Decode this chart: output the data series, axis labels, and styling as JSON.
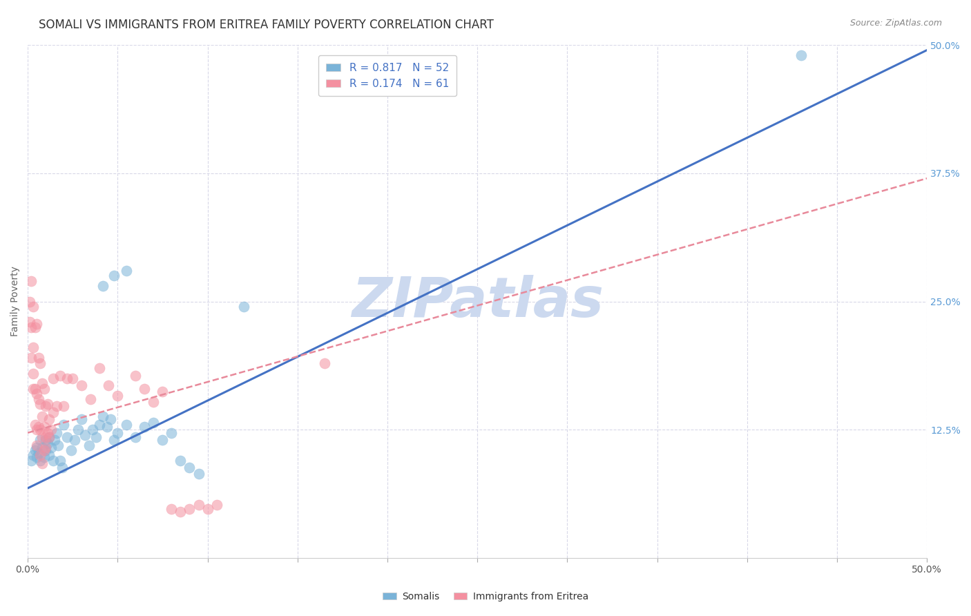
{
  "title": "SOMALI VS IMMIGRANTS FROM ERITREA FAMILY POVERTY CORRELATION CHART",
  "source": "Source: ZipAtlas.com",
  "ylabel": "Family Poverty",
  "xlim": [
    0,
    0.5
  ],
  "ylim": [
    0,
    0.5
  ],
  "xtick_vals": [
    0.0,
    0.05,
    0.1,
    0.15,
    0.2,
    0.25,
    0.3,
    0.35,
    0.4,
    0.45,
    0.5
  ],
  "xtick_label_vals": [
    0.0,
    0.5
  ],
  "xtick_label_texts": [
    "0.0%",
    "50.0%"
  ],
  "ytick_vals_right": [
    0.125,
    0.25,
    0.375,
    0.5
  ],
  "ytick_labels_right": [
    "12.5%",
    "25.0%",
    "37.5%",
    "50.0%"
  ],
  "somali_color": "#7ab3d8",
  "eritrea_color": "#f490a0",
  "somali_line_color": "#4472c4",
  "eritrea_line_color": "#e8899a",
  "watermark": "ZIPatlas",
  "watermark_color": "#ccd9ef",
  "background_color": "#ffffff",
  "grid_color": "#d8d8e8",
  "somali_scatter": [
    [
      0.002,
      0.095
    ],
    [
      0.003,
      0.1
    ],
    [
      0.004,
      0.105
    ],
    [
      0.005,
      0.098
    ],
    [
      0.005,
      0.108
    ],
    [
      0.006,
      0.102
    ],
    [
      0.007,
      0.095
    ],
    [
      0.007,
      0.115
    ],
    [
      0.008,
      0.108
    ],
    [
      0.009,
      0.098
    ],
    [
      0.01,
      0.105
    ],
    [
      0.01,
      0.115
    ],
    [
      0.011,
      0.112
    ],
    [
      0.012,
      0.1
    ],
    [
      0.012,
      0.118
    ],
    [
      0.013,
      0.108
    ],
    [
      0.014,
      0.095
    ],
    [
      0.015,
      0.115
    ],
    [
      0.016,
      0.122
    ],
    [
      0.017,
      0.11
    ],
    [
      0.018,
      0.095
    ],
    [
      0.019,
      0.088
    ],
    [
      0.02,
      0.13
    ],
    [
      0.022,
      0.118
    ],
    [
      0.024,
      0.105
    ],
    [
      0.026,
      0.115
    ],
    [
      0.028,
      0.125
    ],
    [
      0.03,
      0.135
    ],
    [
      0.032,
      0.12
    ],
    [
      0.034,
      0.11
    ],
    [
      0.036,
      0.125
    ],
    [
      0.038,
      0.118
    ],
    [
      0.04,
      0.13
    ],
    [
      0.042,
      0.138
    ],
    [
      0.044,
      0.128
    ],
    [
      0.046,
      0.135
    ],
    [
      0.048,
      0.115
    ],
    [
      0.05,
      0.122
    ],
    [
      0.055,
      0.13
    ],
    [
      0.06,
      0.118
    ],
    [
      0.065,
      0.128
    ],
    [
      0.07,
      0.132
    ],
    [
      0.075,
      0.115
    ],
    [
      0.08,
      0.122
    ],
    [
      0.085,
      0.095
    ],
    [
      0.09,
      0.088
    ],
    [
      0.095,
      0.082
    ],
    [
      0.042,
      0.265
    ],
    [
      0.048,
      0.275
    ],
    [
      0.055,
      0.28
    ],
    [
      0.12,
      0.245
    ],
    [
      0.43,
      0.49
    ]
  ],
  "eritrea_scatter": [
    [
      0.001,
      0.25
    ],
    [
      0.001,
      0.23
    ],
    [
      0.002,
      0.27
    ],
    [
      0.002,
      0.225
    ],
    [
      0.002,
      0.195
    ],
    [
      0.003,
      0.245
    ],
    [
      0.003,
      0.205
    ],
    [
      0.003,
      0.18
    ],
    [
      0.003,
      0.165
    ],
    [
      0.004,
      0.225
    ],
    [
      0.004,
      0.165
    ],
    [
      0.004,
      0.13
    ],
    [
      0.005,
      0.228
    ],
    [
      0.005,
      0.16
    ],
    [
      0.005,
      0.125
    ],
    [
      0.005,
      0.11
    ],
    [
      0.006,
      0.195
    ],
    [
      0.006,
      0.155
    ],
    [
      0.006,
      0.128
    ],
    [
      0.007,
      0.19
    ],
    [
      0.007,
      0.15
    ],
    [
      0.007,
      0.125
    ],
    [
      0.007,
      0.1
    ],
    [
      0.008,
      0.17
    ],
    [
      0.008,
      0.138
    ],
    [
      0.008,
      0.118
    ],
    [
      0.008,
      0.092
    ],
    [
      0.009,
      0.165
    ],
    [
      0.009,
      0.128
    ],
    [
      0.009,
      0.105
    ],
    [
      0.01,
      0.148
    ],
    [
      0.01,
      0.118
    ],
    [
      0.01,
      0.108
    ],
    [
      0.011,
      0.15
    ],
    [
      0.011,
      0.122
    ],
    [
      0.012,
      0.135
    ],
    [
      0.012,
      0.118
    ],
    [
      0.013,
      0.125
    ],
    [
      0.014,
      0.175
    ],
    [
      0.014,
      0.142
    ],
    [
      0.016,
      0.148
    ],
    [
      0.018,
      0.178
    ],
    [
      0.02,
      0.148
    ],
    [
      0.022,
      0.175
    ],
    [
      0.025,
      0.175
    ],
    [
      0.03,
      0.168
    ],
    [
      0.035,
      0.155
    ],
    [
      0.04,
      0.185
    ],
    [
      0.045,
      0.168
    ],
    [
      0.05,
      0.158
    ],
    [
      0.06,
      0.178
    ],
    [
      0.065,
      0.165
    ],
    [
      0.07,
      0.152
    ],
    [
      0.075,
      0.162
    ],
    [
      0.08,
      0.048
    ],
    [
      0.085,
      0.045
    ],
    [
      0.09,
      0.048
    ],
    [
      0.095,
      0.052
    ],
    [
      0.1,
      0.048
    ],
    [
      0.105,
      0.052
    ],
    [
      0.165,
      0.19
    ]
  ],
  "somali_line": [
    [
      0.0,
      0.068
    ],
    [
      0.5,
      0.495
    ]
  ],
  "eritrea_line": [
    [
      0.0,
      0.122
    ],
    [
      0.5,
      0.37
    ]
  ],
  "r_somali": "0.817",
  "n_somali": "52",
  "r_eritrea": "0.174",
  "n_eritrea": "61",
  "title_fontsize": 12,
  "label_fontsize": 10,
  "tick_fontsize": 10,
  "source_fontsize": 9,
  "legend_fontsize": 11
}
